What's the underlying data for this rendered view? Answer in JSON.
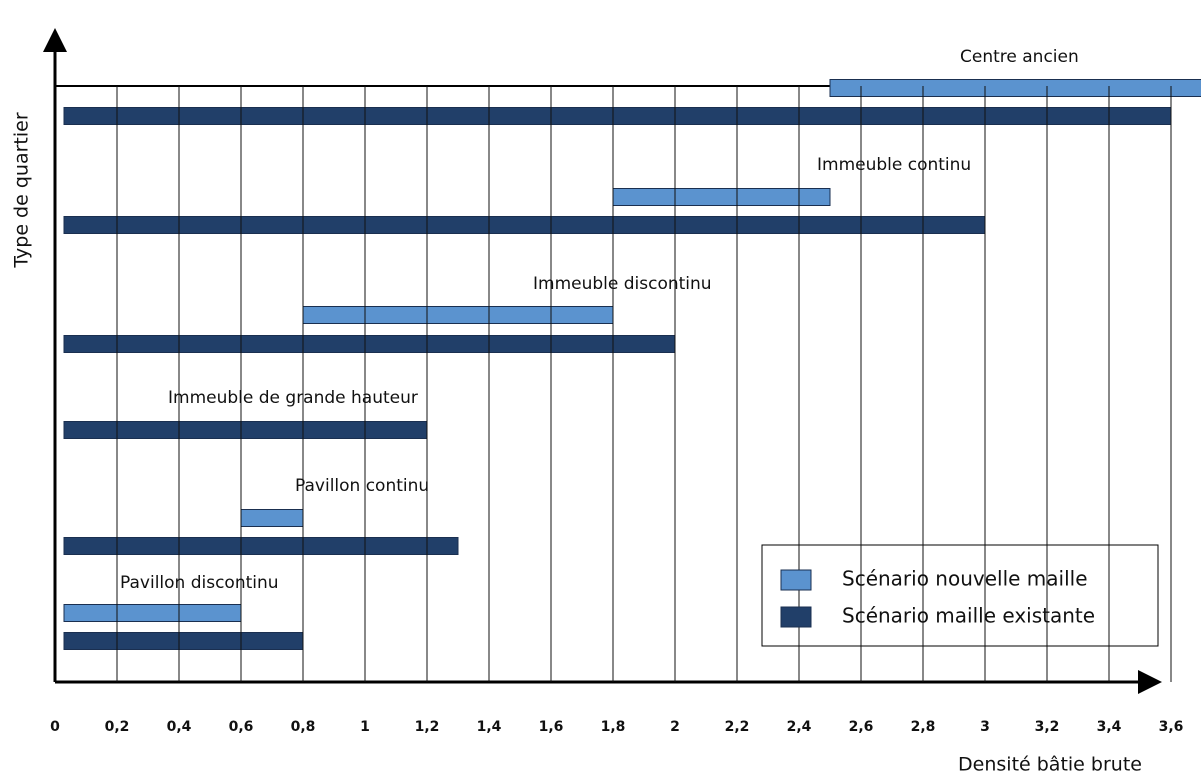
{
  "chart_data": {
    "type": "range-bar",
    "x_label": "Densité bâtie brute",
    "y_label": "Type de quartier",
    "categories": [
      "Pavillon discontinu",
      "Pavillon continu",
      "Immeuble de grande hauteur",
      "Immeuble discontinu",
      "Immeuble continu",
      "Centre ancien"
    ],
    "series": [
      {
        "name": "Scénario nouvelle maille",
        "color": "#5b93cf",
        "values": [
          [
            0,
            0.6
          ],
          [
            0.6,
            0.8
          ],
          null,
          [
            0.8,
            1.8
          ],
          [
            1.8,
            2.5
          ],
          [
            2.5,
            3.7
          ]
        ]
      },
      {
        "name": "Scénario maille existante",
        "color": "#213f69",
        "values": [
          [
            0,
            0.8
          ],
          [
            0,
            1.3
          ],
          [
            0,
            1.2
          ],
          [
            0,
            2
          ],
          [
            0,
            3
          ],
          [
            0,
            3.6
          ]
        ]
      }
    ],
    "xlim": [
      0,
      3.7
    ],
    "xticks": [
      0,
      {
        "value": 0.2,
        "label": "0,2"
      },
      {
        "value": 0.4,
        "label": "0,4"
      },
      {
        "value": 0.6,
        "label": "0,6"
      },
      {
        "value": 0.8,
        "label": "0,8"
      },
      1,
      {
        "value": 1.2,
        "label": "1,2"
      },
      {
        "value": 1.4,
        "label": "1,4"
      },
      {
        "value": 1.6,
        "label": "1,6"
      },
      {
        "value": 1.8,
        "label": "1,8"
      },
      2,
      {
        "value": 2.2,
        "label": "2,2"
      },
      {
        "value": 2.4,
        "label": "2,4"
      },
      {
        "value": 2.6,
        "label": "2,6"
      },
      {
        "value": 2.8,
        "label": "2,8"
      },
      3,
      {
        "value": 3.2,
        "label": "3,2"
      },
      {
        "value": 3.4,
        "label": "3,4"
      },
      {
        "value": 3.6,
        "label": "3,6"
      }
    ],
    "grid": true,
    "legend": "lower right"
  }
}
